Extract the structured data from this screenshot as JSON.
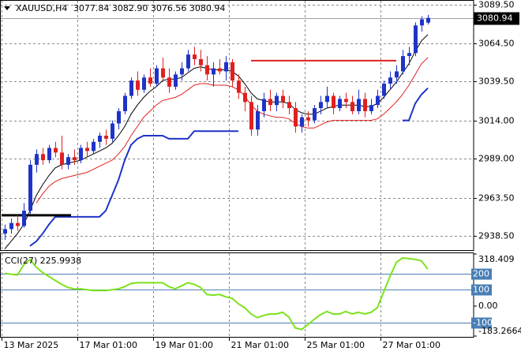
{
  "header": {
    "symbol": "XAUUSD,H4",
    "quote": [
      "3077.84",
      "3082.90",
      "3076.56",
      "3080.94"
    ]
  },
  "chart_data": [
    {
      "type": "candlestick",
      "xlim": [
        -0.75,
        74.25
      ],
      "ylim": [
        2929.3,
        3092.1
      ],
      "xticks": [
        {
          "value": -0.5,
          "label": "13 Mar 2025"
        },
        {
          "value": 11.5,
          "label": "17 Mar 01:00"
        },
        {
          "value": 23.5,
          "label": "19 Mar 01:00"
        },
        {
          "value": 35.5,
          "label": "21 Mar 01:00"
        },
        {
          "value": 47.5,
          "label": "25 Mar 01:00"
        },
        {
          "value": 59.5,
          "label": "27 Mar 01:00"
        }
      ],
      "yticks": [
        {
          "value": 3089.5,
          "label": "3089.50"
        },
        {
          "value": 3064.5,
          "label": "3064.50"
        },
        {
          "value": 3039.5,
          "label": "3039.50"
        },
        {
          "value": 3014,
          "label": "3014.00"
        },
        {
          "value": 2989,
          "label": "2989.00"
        },
        {
          "value": 2963.5,
          "label": "2963.50"
        },
        {
          "value": 2938.5,
          "label": "2938.50"
        }
      ],
      "grid": true,
      "up_color": "#1f33c8",
      "down_color": "#e02020",
      "ohlc": [
        [
          2940,
          2946,
          2936,
          2943
        ],
        [
          2943,
          2950,
          2940,
          2947
        ],
        [
          2947,
          2952,
          2942,
          2945
        ],
        [
          2945,
          2960,
          2944,
          2955
        ],
        [
          2955,
          2988,
          2953,
          2985
        ],
        [
          2985,
          2995,
          2980,
          2992
        ],
        [
          2992,
          2996,
          2985,
          2988
        ],
        [
          2988,
          2998,
          2986,
          2996
        ],
        [
          2996,
          3000,
          2990,
          2993
        ],
        [
          2993,
          3004,
          2982,
          2985
        ],
        [
          2985,
          2992,
          2982,
          2990
        ],
        [
          2990,
          2995,
          2985,
          2988
        ],
        [
          2988,
          2998,
          2986,
          2996
        ],
        [
          2996,
          3000,
          2990,
          2994
        ],
        [
          2994,
          3002,
          2992,
          3000
        ],
        [
          3000,
          3006,
          2996,
          3004
        ],
        [
          3004,
          3008,
          2998,
          3002
        ],
        [
          3002,
          3014,
          3000,
          3012
        ],
        [
          3012,
          3022,
          3008,
          3020
        ],
        [
          3020,
          3032,
          3018,
          3030
        ],
        [
          3030,
          3042,
          3028,
          3040
        ],
        [
          3040,
          3046,
          3030,
          3034
        ],
        [
          3034,
          3044,
          3032,
          3042
        ],
        [
          3042,
          3048,
          3036,
          3038
        ],
        [
          3038,
          3050,
          3036,
          3048
        ],
        [
          3048,
          3055,
          3040,
          3042
        ],
        [
          3042,
          3048,
          3032,
          3036
        ],
        [
          3036,
          3046,
          3034,
          3044
        ],
        [
          3044,
          3052,
          3040,
          3048
        ],
        [
          3048,
          3060,
          3046,
          3057
        ],
        [
          3057,
          3062,
          3050,
          3054
        ],
        [
          3054,
          3060,
          3046,
          3050
        ],
        [
          3050,
          3056,
          3040,
          3044
        ],
        [
          3044,
          3052,
          3036,
          3048
        ],
        [
          3048,
          3054,
          3044,
          3046
        ],
        [
          3046,
          3056,
          3040,
          3052
        ],
        [
          3052,
          3054,
          3036,
          3040
        ],
        [
          3040,
          3044,
          3028,
          3032
        ],
        [
          3032,
          3036,
          3020,
          3026
        ],
        [
          3026,
          3030,
          3004,
          3008
        ],
        [
          3008,
          3024,
          3004,
          3020
        ],
        [
          3020,
          3032,
          3016,
          3028
        ],
        [
          3028,
          3034,
          3020,
          3024
        ],
        [
          3024,
          3032,
          3020,
          3030
        ],
        [
          3030,
          3034,
          3022,
          3026
        ],
        [
          3026,
          3030,
          3018,
          3022
        ],
        [
          3022,
          3026,
          3006,
          3010
        ],
        [
          3010,
          3018,
          3006,
          3016
        ],
        [
          3016,
          3020,
          3010,
          3014
        ],
        [
          3014,
          3024,
          3012,
          3022
        ],
        [
          3022,
          3030,
          3018,
          3026
        ],
        [
          3026,
          3036,
          3022,
          3030
        ],
        [
          3030,
          3032,
          3018,
          3022
        ],
        [
          3022,
          3030,
          3020,
          3028
        ],
        [
          3028,
          3032,
          3022,
          3026
        ],
        [
          3026,
          3030,
          3018,
          3020
        ],
        [
          3020,
          3034,
          3018,
          3028
        ],
        [
          3028,
          3032,
          3016,
          3020
        ],
        [
          3020,
          3028,
          3018,
          3024
        ],
        [
          3024,
          3034,
          3022,
          3030
        ],
        [
          3030,
          3040,
          3028,
          3038
        ],
        [
          3038,
          3046,
          3034,
          3042
        ],
        [
          3042,
          3050,
          3038,
          3046
        ],
        [
          3046,
          3060,
          3044,
          3056
        ],
        [
          3056,
          3062,
          3050,
          3058
        ],
        [
          3058,
          3078,
          3056,
          3076
        ],
        [
          3076,
          3082,
          3072,
          3080
        ],
        [
          3077.84,
          3082.9,
          3076.56,
          3080.94
        ]
      ],
      "lines": [
        {
          "color": "#000000",
          "values": [
            2930,
            2935,
            2940,
            2946,
            2955,
            2965,
            2972,
            2978,
            2983,
            2985,
            2986,
            2987,
            2988,
            2990,
            2992,
            2994,
            2996,
            2999,
            3004,
            3010,
            3018,
            3024,
            3029,
            3033,
            3036,
            3040,
            3041,
            3041,
            3042,
            3045,
            3048,
            3049,
            3048,
            3047,
            3047,
            3047,
            3046,
            3043,
            3038,
            3032,
            3028,
            3027,
            3026,
            3026,
            3026,
            3025,
            3021,
            3019,
            3018,
            3018,
            3020,
            3022,
            3023,
            3024,
            3024,
            3024,
            3024,
            3023,
            3023,
            3025,
            3029,
            3034,
            3039,
            3045,
            3051,
            3059,
            3066,
            3070
          ]
        },
        {
          "color": "#e02020",
          "values": [
            null,
            null,
            null,
            null,
            null,
            2960,
            2966,
            2971,
            2974,
            2976,
            2977,
            2978,
            2979,
            2980,
            2982,
            2984,
            2986,
            2988,
            2992,
            2997,
            3004,
            3010,
            3016,
            3020,
            3024,
            3027,
            3028,
            3029,
            3031,
            3034,
            3037,
            3038,
            3038,
            3037,
            3037,
            3037,
            3036,
            3034,
            3030,
            3024,
            3020,
            3018,
            3017,
            3016,
            3016,
            3015,
            3012,
            3010,
            3009,
            3009,
            3011,
            3013,
            3014,
            3014,
            3014,
            3014,
            3014,
            3014,
            3014,
            3015,
            3018,
            3022,
            3026,
            3031,
            3037,
            3044,
            3051,
            3055
          ]
        },
        {
          "color": "#1f33c8",
          "width": 2,
          "values": [
            null,
            null,
            null,
            null,
            2932,
            2935,
            2940,
            2946,
            2951,
            2951,
            2951,
            2951,
            2951,
            2951,
            2951,
            2951,
            2955,
            2965,
            2975,
            2988,
            2998,
            3002,
            3004,
            3004,
            3004,
            3004,
            3002,
            3002,
            3002,
            3002,
            3007,
            3007,
            3007,
            3007,
            3007,
            3007,
            3007,
            3007,
            null,
            null,
            null,
            null,
            null,
            null,
            null,
            null,
            null,
            null,
            null,
            null,
            null,
            null,
            null,
            null,
            null,
            null,
            null,
            null,
            null,
            null,
            null,
            null,
            null,
            3014,
            3014,
            3025,
            3031,
            3035
          ]
        },
        {
          "color": "#e02020",
          "width": 2,
          "x": [
            39,
            62
          ],
          "values": [
            3053,
            3053
          ]
        },
        {
          "color": "#000000",
          "width": 3,
          "x": [
            -0.5,
            10.5
          ],
          "values": [
            2952,
            2952
          ]
        }
      ],
      "last_price": 3080.94
    },
    {
      "type": "line",
      "title": "CCI(27) 225.9938",
      "color": "#7ce21e",
      "ylim": [
        -183.2664,
        318.409
      ],
      "yticks": [
        318.409,
        {
          "value": 0,
          "label": "0.00"
        },
        -183.2664
      ],
      "levels": [
        200,
        100,
        -100
      ],
      "level_color": "#4a7fb5",
      "values": [
        200,
        195,
        190,
        252,
        285,
        238,
        205,
        181,
        157,
        133,
        114,
        105,
        105,
        100,
        95,
        95,
        95,
        100,
        105,
        119,
        138,
        143,
        143,
        143,
        143,
        143,
        119,
        105,
        124,
        143,
        133,
        114,
        71,
        67,
        71,
        57,
        48,
        14,
        -10,
        -48,
        -71,
        -57,
        -48,
        -48,
        -38,
        -67,
        -133,
        -143,
        -114,
        -81,
        -52,
        -33,
        -48,
        -48,
        -33,
        -48,
        -38,
        -48,
        -38,
        -10,
        86,
        181,
        267,
        295,
        290,
        286,
        276,
        226
      ]
    }
  ]
}
